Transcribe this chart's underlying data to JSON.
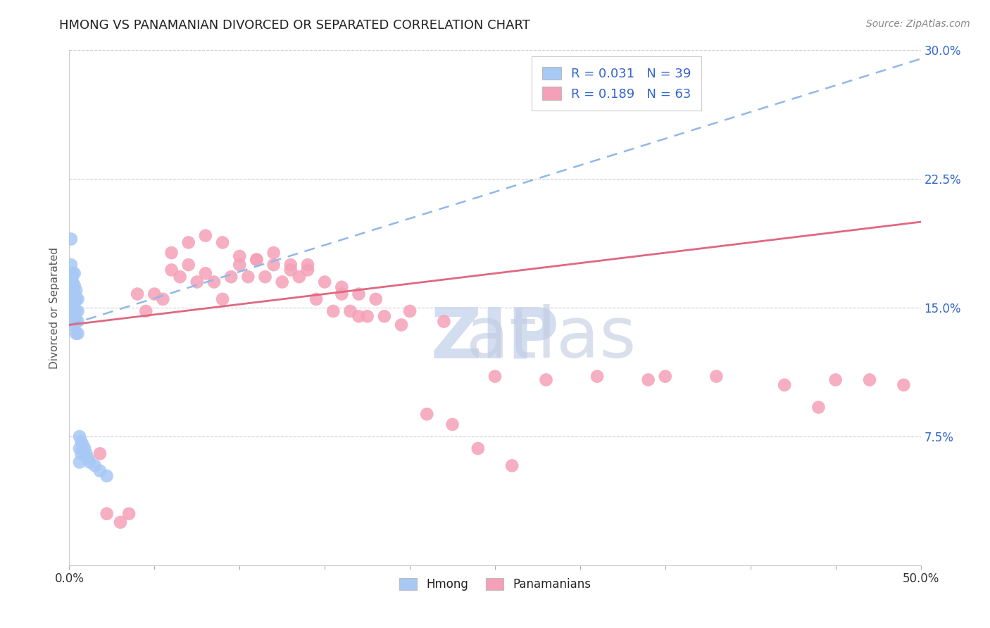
{
  "title": "HMONG VS PANAMANIAN DIVORCED OR SEPARATED CORRELATION CHART",
  "source": "Source: ZipAtlas.com",
  "ylabel": "Divorced or Separated",
  "x_min": 0.0,
  "x_max": 0.5,
  "y_min": 0.0,
  "y_max": 0.3,
  "x_ticks": [
    0.0,
    0.05,
    0.1,
    0.15,
    0.2,
    0.25,
    0.3,
    0.35,
    0.4,
    0.45,
    0.5
  ],
  "y_ticks": [
    0.0,
    0.075,
    0.15,
    0.225,
    0.3
  ],
  "y_tick_labels_right": [
    "",
    "7.5%",
    "15.0%",
    "22.5%",
    "30.0%"
  ],
  "hmong_R": 0.031,
  "hmong_N": 39,
  "pana_R": 0.189,
  "pana_N": 63,
  "hmong_color": "#a8c8f5",
  "hmong_line_color": "#90b8e8",
  "pana_color": "#f5a0b8",
  "pana_line_color": "#e06880",
  "legend_R_color": "#3366cc",
  "background_color": "#ffffff",
  "grid_color": "#ccccdd",
  "watermark_zip_color": "#ccd8ee",
  "watermark_atlas_color": "#c0cce0",
  "hmong_x": [
    0.001,
    0.001,
    0.001,
    0.001,
    0.001,
    0.002,
    0.002,
    0.002,
    0.002,
    0.002,
    0.002,
    0.003,
    0.003,
    0.003,
    0.003,
    0.003,
    0.003,
    0.004,
    0.004,
    0.004,
    0.004,
    0.004,
    0.005,
    0.005,
    0.005,
    0.005,
    0.006,
    0.006,
    0.006,
    0.007,
    0.007,
    0.008,
    0.009,
    0.01,
    0.011,
    0.012,
    0.015,
    0.018,
    0.022
  ],
  "hmong_y": [
    0.19,
    0.175,
    0.165,
    0.155,
    0.15,
    0.17,
    0.165,
    0.158,
    0.15,
    0.145,
    0.14,
    0.17,
    0.163,
    0.158,
    0.153,
    0.148,
    0.142,
    0.16,
    0.155,
    0.148,
    0.142,
    0.135,
    0.155,
    0.148,
    0.142,
    0.135,
    0.075,
    0.068,
    0.06,
    0.072,
    0.065,
    0.07,
    0.068,
    0.065,
    0.062,
    0.06,
    0.058,
    0.055,
    0.052
  ],
  "pana_x": [
    0.018,
    0.022,
    0.03,
    0.035,
    0.04,
    0.045,
    0.055,
    0.06,
    0.065,
    0.07,
    0.075,
    0.08,
    0.085,
    0.09,
    0.095,
    0.1,
    0.105,
    0.11,
    0.115,
    0.12,
    0.125,
    0.13,
    0.135,
    0.14,
    0.145,
    0.155,
    0.16,
    0.165,
    0.17,
    0.175,
    0.185,
    0.195,
    0.21,
    0.225,
    0.24,
    0.26,
    0.28,
    0.31,
    0.34,
    0.38,
    0.42,
    0.44,
    0.05,
    0.06,
    0.07,
    0.08,
    0.09,
    0.1,
    0.11,
    0.12,
    0.13,
    0.14,
    0.15,
    0.16,
    0.17,
    0.18,
    0.2,
    0.22,
    0.25,
    0.35,
    0.45,
    0.47,
    0.49
  ],
  "pana_y": [
    0.065,
    0.03,
    0.025,
    0.03,
    0.158,
    0.148,
    0.155,
    0.172,
    0.168,
    0.175,
    0.165,
    0.17,
    0.165,
    0.155,
    0.168,
    0.175,
    0.168,
    0.178,
    0.168,
    0.175,
    0.165,
    0.172,
    0.168,
    0.175,
    0.155,
    0.148,
    0.158,
    0.148,
    0.145,
    0.145,
    0.145,
    0.14,
    0.088,
    0.082,
    0.068,
    0.058,
    0.108,
    0.11,
    0.108,
    0.11,
    0.105,
    0.092,
    0.158,
    0.182,
    0.188,
    0.192,
    0.188,
    0.18,
    0.178,
    0.182,
    0.175,
    0.172,
    0.165,
    0.162,
    0.158,
    0.155,
    0.148,
    0.142,
    0.11,
    0.11,
    0.108,
    0.108,
    0.105
  ],
  "hmong_line_x0": 0.0,
  "hmong_line_y0": 0.14,
  "hmong_line_x1": 0.5,
  "hmong_line_y1": 0.295,
  "pana_line_x0": 0.0,
  "pana_line_y0": 0.14,
  "pana_line_x1": 0.5,
  "pana_line_y1": 0.2
}
